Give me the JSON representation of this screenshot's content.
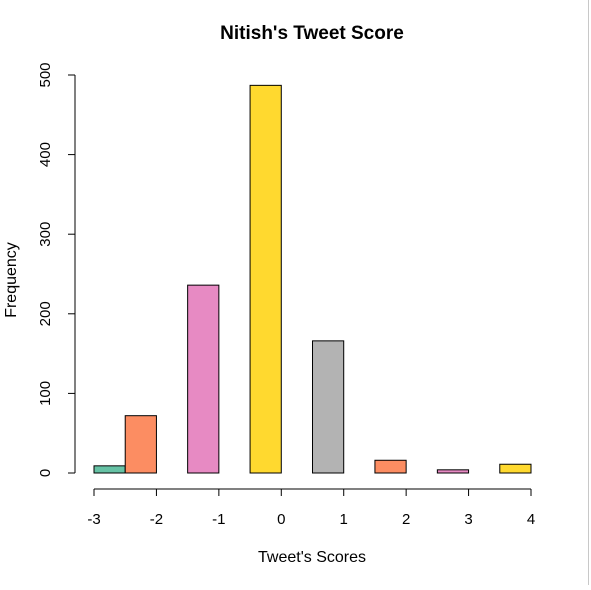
{
  "chart_data": {
    "type": "bar",
    "title": "Nitish's Tweet Score",
    "xlabel": "Tweet's Scores",
    "ylabel": "Frequency",
    "ylim": [
      0,
      500
    ],
    "yticks": [
      0,
      100,
      200,
      300,
      400,
      500
    ],
    "xlim": [
      -3,
      4
    ],
    "xticks": [
      -3,
      -2,
      -1,
      0,
      1,
      2,
      3,
      4
    ],
    "grid": false,
    "bars": [
      {
        "x_start": -3.0,
        "x_end": -2.5,
        "value": 9,
        "color": "#66c2a5"
      },
      {
        "x_start": -2.5,
        "x_end": -2.0,
        "value": 72,
        "color": "#fc8d62"
      },
      {
        "x_start": -1.5,
        "x_end": -1.0,
        "value": 236,
        "color": "#e78ac3"
      },
      {
        "x_start": -0.5,
        "x_end": 0.0,
        "value": 487,
        "color": "#ffd92f"
      },
      {
        "x_start": 0.5,
        "x_end": 1.0,
        "value": 166,
        "color": "#b3b3b3"
      },
      {
        "x_start": 1.5,
        "x_end": 2.0,
        "value": 16,
        "color": "#fc8d62"
      },
      {
        "x_start": 2.5,
        "x_end": 3.0,
        "value": 4,
        "color": "#e78ac3"
      },
      {
        "x_start": 3.5,
        "x_end": 4.0,
        "value": 11,
        "color": "#ffd92f"
      }
    ]
  }
}
